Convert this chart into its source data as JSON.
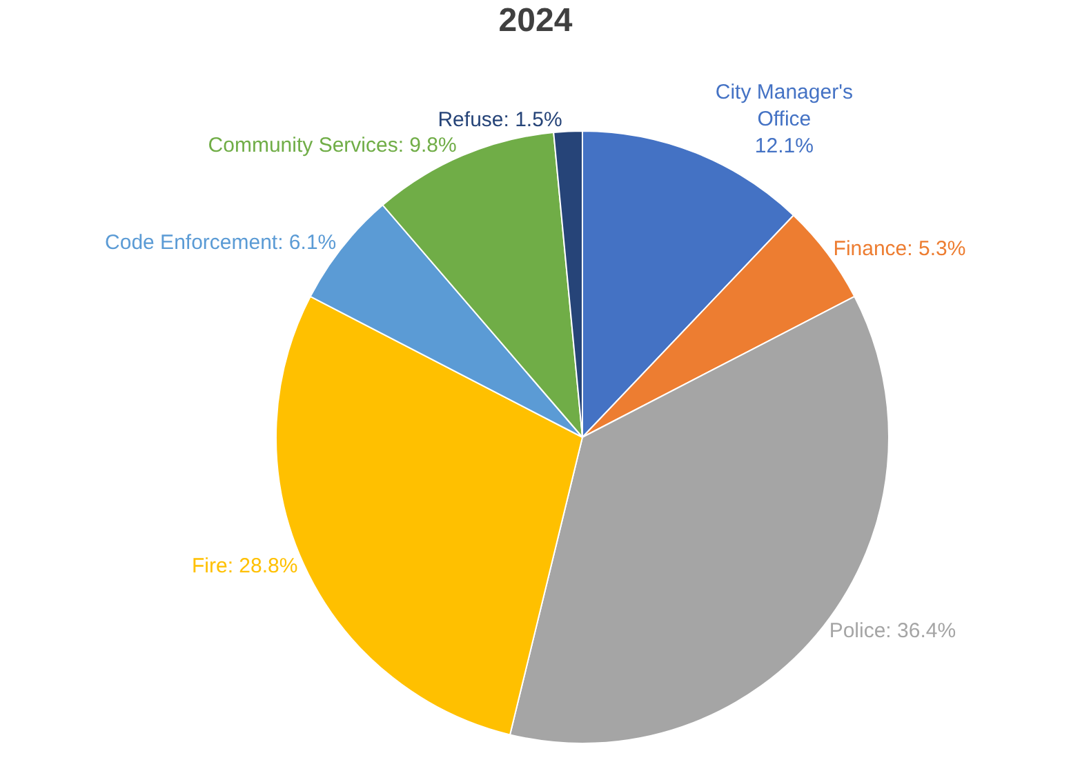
{
  "chart_data": {
    "type": "pie",
    "title": "2024",
    "categories": [
      "City Manager's Office",
      "Finance",
      "Police",
      "Fire",
      "Code Enforcement",
      "Community Services",
      "Refuse"
    ],
    "values": [
      12.1,
      5.3,
      36.4,
      28.8,
      6.1,
      9.8,
      1.5
    ],
    "value_labels": [
      "12.1%",
      "5.3%",
      "36.4%",
      "28.8%",
      "6.1%",
      "9.8%",
      "1.5%"
    ],
    "colors": [
      "#4472c4",
      "#ed7d31",
      "#a5a5a5",
      "#ffc000",
      "#5b9bd5",
      "#70ad47",
      "#264478"
    ],
    "legend": false
  }
}
